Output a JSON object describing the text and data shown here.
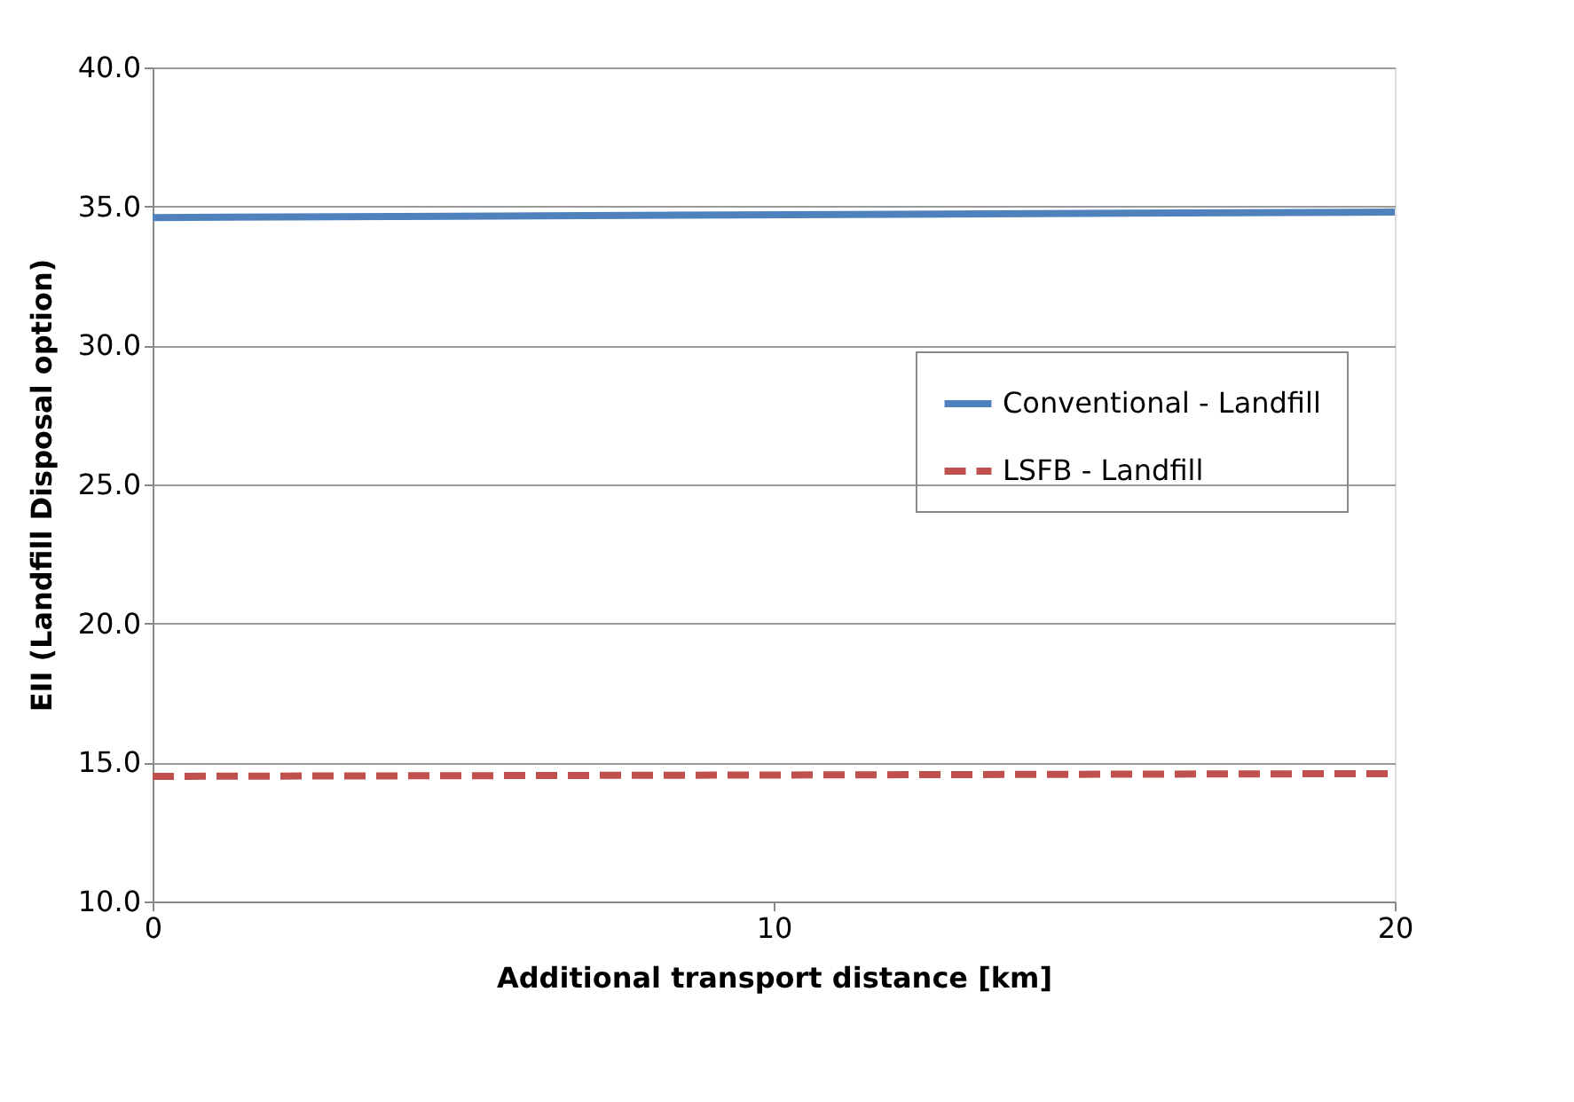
{
  "chart_data": {
    "type": "line",
    "xlabel": "Additional transport distance [km]",
    "ylabel": "EII (Landfill Disposal option)",
    "x": [
      0,
      20
    ],
    "series": [
      {
        "name": "Conventional - Landfill",
        "color": "#4f81bd",
        "values": [
          34.6,
          34.8
        ],
        "line_style": "solid"
      },
      {
        "name": "LSFB - Landfill",
        "color": "#c0504d",
        "values": [
          14.5,
          14.6
        ],
        "line_style": "dashed"
      }
    ],
    "xlim": [
      0,
      20
    ],
    "xticks": [
      0,
      10,
      20
    ],
    "ylim": [
      10,
      40
    ],
    "yticks": [
      {
        "value": 10,
        "label": "10.0"
      },
      {
        "value": 15,
        "label": "15.0"
      },
      {
        "value": 20,
        "label": "20.0"
      },
      {
        "value": 25,
        "label": "25.0"
      },
      {
        "value": 30,
        "label": "30.0"
      },
      {
        "value": 35,
        "label": "35.0"
      },
      {
        "value": 40,
        "label": "40.0"
      }
    ],
    "grid": "y",
    "legend": "right",
    "marker": "none"
  }
}
